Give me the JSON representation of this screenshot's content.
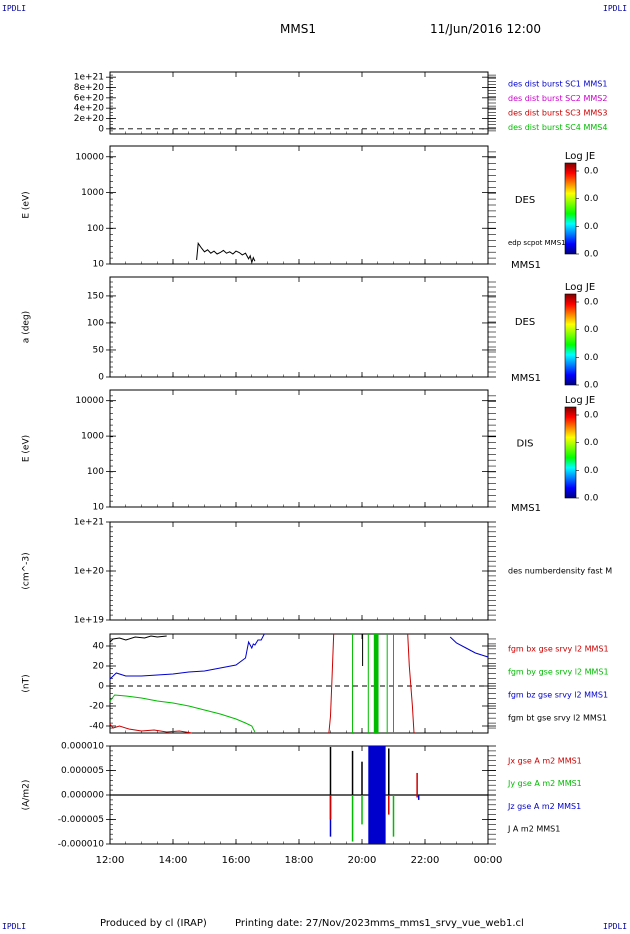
{
  "header": {
    "corner_tl": "IPDLI",
    "corner_tr": "IPDLI",
    "corner_bl": "IPDLI",
    "corner_br": "IPDLI",
    "title": "MMS1",
    "date": "11/Jun/2016 12:00"
  },
  "footer": {
    "produced_by": "Produced by cl (IRAP)",
    "printing_date": "Printing date: 27/Nov/2023",
    "filename": "mms_mms1_srvy_vue_web1.cl"
  },
  "time_axis": {
    "ticks": [
      "12:00",
      "14:00",
      "16:00",
      "18:00",
      "20:00",
      "22:00",
      "00:00"
    ],
    "range_hours": [
      12,
      24
    ]
  },
  "colorbars": [
    {
      "title": "Log JE",
      "labels": [
        "0.0",
        "0.0",
        "0.0",
        "0.0"
      ]
    },
    {
      "title": "Log JE",
      "labels": [
        "0.0",
        "0.0",
        "0.0",
        "0.0"
      ]
    },
    {
      "title": "Log JE",
      "labels": [
        "0.0",
        "0.0",
        "0.0",
        "0.0"
      ]
    }
  ],
  "chart_data": [
    {
      "type": "line",
      "ylabel": "",
      "ylim": [
        -100000000000000000000,
        1100000000000000000000
      ],
      "yticks": [
        "1e+21",
        "8e+20",
        "6e+20",
        "4e+20",
        "2e+20",
        "0"
      ],
      "zero_line": true,
      "legend": [
        {
          "label": "des dist burst SC1 MMS1",
          "color": "#0000cc"
        },
        {
          "label": "des dist burst SC2 MMS2",
          "color": "#cc00cc"
        },
        {
          "label": "des dist burst SC3 MMS3",
          "color": "#cc0000"
        },
        {
          "label": "des dist burst SC4 MMS4",
          "color": "#00bb00"
        }
      ]
    },
    {
      "type": "heatmap",
      "ylabel": "E (eV)",
      "yscale": "log",
      "ylim": [
        10,
        20000
      ],
      "yticks": [
        "10000",
        "1000",
        "100",
        "10"
      ],
      "right_labels": {
        "instrument": "DES",
        "mission": "MMS1",
        "overlay": "edp scpot MMS1"
      },
      "overlay_series": {
        "name": "edp scpot MMS1",
        "color": "#000000",
        "x": [
          14.75,
          14.8,
          14.9,
          15.0,
          15.1,
          15.2,
          15.3,
          15.4,
          15.5,
          15.6,
          15.7,
          15.8,
          15.9,
          16.0,
          16.1,
          16.2,
          16.3,
          16.4,
          16.45,
          16.5,
          16.55,
          16.6
        ],
        "y": [
          13,
          38,
          28,
          22,
          25,
          20,
          23,
          19,
          21,
          24,
          20,
          22,
          19,
          23,
          21,
          18,
          20,
          14,
          17,
          11,
          15,
          12
        ]
      }
    },
    {
      "type": "heatmap",
      "ylabel": "a (deg)",
      "ylim": [
        0,
        185
      ],
      "yticks": [
        "150",
        "100",
        "50",
        "0"
      ],
      "right_labels": {
        "instrument": "DES",
        "mission": "MMS1"
      }
    },
    {
      "type": "heatmap",
      "ylabel": "E (eV)",
      "yscale": "log",
      "ylim": [
        10,
        20000
      ],
      "yticks": [
        "10000",
        "1000",
        "100",
        "10"
      ],
      "right_labels": {
        "instrument": "DIS",
        "mission": "MMS1"
      }
    },
    {
      "type": "line",
      "ylabel": "(cm^-3)",
      "yscale": "log",
      "ylim": [
        1e+19,
        1e+21
      ],
      "yticks": [
        "1e+21",
        "1e+20",
        "1e+19"
      ],
      "legend": [
        {
          "label": "des numberdensity fast M",
          "color": "#000000"
        }
      ]
    },
    {
      "type": "line",
      "ylabel": "(nT)",
      "ylim": [
        -47,
        52
      ],
      "yticks": [
        "40",
        "20",
        "0",
        "-20",
        "-40"
      ],
      "zero_line": true,
      "legend": [
        {
          "label": "fgm bx gse srvy l2 MMS1",
          "color": "#cc0000"
        },
        {
          "label": "fgm by gse srvy l2 MMS1",
          "color": "#00bb00"
        },
        {
          "label": "fgm bz gse srvy l2 MMS1",
          "color": "#0000cc"
        },
        {
          "label": "fgm bt gse srvy l2 MMS1",
          "color": "#000000"
        }
      ],
      "series": [
        {
          "name": "fgm bt gse srvy l2 MMS1",
          "color": "#000000",
          "x": [
            12.0,
            12.1,
            12.3,
            12.5,
            12.8,
            13.1,
            13.3,
            13.5,
            13.8
          ],
          "y": [
            44,
            47,
            48,
            46,
            49,
            48,
            50,
            49,
            50
          ]
        },
        {
          "name": "fgm bx gse srvy l2 MMS1",
          "color": "#cc0000",
          "x": [
            12.0,
            12.1,
            12.3,
            12.6,
            13.0,
            13.4,
            13.8,
            14.2,
            14.6
          ],
          "y": [
            -38,
            -42,
            -40,
            -43,
            -45,
            -44,
            -46,
            -45,
            -47
          ]
        },
        {
          "name": "fgm by gse srvy l2 MMS1",
          "color": "#00bb00",
          "x": [
            12.0,
            12.15,
            12.5,
            13.0,
            13.5,
            14.0,
            14.5,
            15.0,
            15.5,
            16.0,
            16.3,
            16.5,
            16.6
          ],
          "y": [
            -15,
            -9,
            -10,
            -12,
            -15,
            -17,
            -20,
            -24,
            -28,
            -33,
            -37,
            -40,
            -46
          ]
        },
        {
          "name": "fgm bz gse srvy l2 MMS1",
          "color": "#0000cc",
          "x": [
            12.0,
            12.2,
            12.5,
            13.0,
            13.5,
            14.0,
            14.5,
            15.0,
            15.5,
            16.0,
            16.3,
            16.4,
            16.5,
            16.55,
            16.6,
            16.7,
            16.8,
            16.9
          ],
          "y": [
            7,
            13,
            10,
            10,
            11,
            12,
            14,
            15,
            18,
            21,
            28,
            44,
            38,
            42,
            41,
            46,
            46,
            52
          ]
        },
        {
          "name": "fgm bz gse srvy l2 MMS1",
          "color": "#0000cc",
          "x": [
            22.8,
            23.0,
            23.3,
            23.6,
            24.0
          ],
          "y": [
            49,
            43,
            38,
            33,
            29
          ]
        },
        {
          "name": "fgm bx gse srvy l2 MMS1",
          "color": "#cc0000",
          "x": [
            18.95,
            19.0,
            19.05,
            19.1
          ],
          "y": [
            -47,
            -30,
            10,
            52
          ]
        },
        {
          "name": "fgm bx gse srvy l2 MMS1",
          "color": "#cc0000",
          "x": [
            21.45,
            21.5,
            21.6,
            21.65
          ],
          "y": [
            52,
            20,
            -20,
            -47
          ]
        },
        {
          "name": "fgm bt gse srvy l2 MMS1",
          "color": "#000000",
          "x": [
            20.02,
            20.02
          ],
          "y": [
            52,
            20
          ]
        }
      ],
      "bursts": [
        {
          "x": 19.7,
          "color": "#00bb00",
          "y": [
            -47,
            52
          ]
        },
        {
          "x": 20.2,
          "color": "#00bb00",
          "y": [
            -47,
            52
          ]
        },
        {
          "x": 20.45,
          "color": "#00bb00",
          "y": [
            -47,
            52
          ],
          "band_width": 0.15
        },
        {
          "x": 20.8,
          "color": "#00bb00",
          "y": [
            -47,
            52
          ]
        },
        {
          "x": 21.0,
          "color": "#00bb00",
          "y": [
            -47,
            52
          ]
        }
      ]
    },
    {
      "type": "line",
      "ylabel": "(A/m2)",
      "ylim": [
        -1e-05,
        1e-05
      ],
      "yticks": [
        "0.000010",
        "0.000005",
        "0.000000",
        "-0.000005",
        "-0.000010"
      ],
      "legend": [
        {
          "label": "Jx gse A m2 MMS1",
          "color": "#cc0000"
        },
        {
          "label": "Jy gse A m2 MMS1",
          "color": "#00bb00"
        },
        {
          "label": "Jz gse A m2 MMS1",
          "color": "#0000cc"
        },
        {
          "label": "J A m2 MMS1",
          "color": "#000000"
        }
      ],
      "baseline": 0,
      "spikes": [
        {
          "x": 19.0,
          "color": "#000000",
          "y": [
            0,
            9.8e-06
          ]
        },
        {
          "x": 19.0,
          "color": "#0000cc",
          "y": [
            -8.5e-06,
            0
          ]
        },
        {
          "x": 19.0,
          "color": "#cc0000",
          "y": [
            -5e-06,
            0
          ]
        },
        {
          "x": 19.7,
          "color": "#000000",
          "y": [
            0,
            9e-06
          ]
        },
        {
          "x": 19.7,
          "color": "#00bb00",
          "y": [
            -9.5e-06,
            0
          ]
        },
        {
          "x": 20.0,
          "color": "#000000",
          "y": [
            0,
            6.8e-06
          ]
        },
        {
          "x": 20.0,
          "color": "#00bb00",
          "y": [
            -6e-06,
            0
          ]
        },
        {
          "x": 20.85,
          "color": "#000000",
          "y": [
            0,
            9.5e-06
          ]
        },
        {
          "x": 20.85,
          "color": "#cc0000",
          "y": [
            -4e-06,
            0
          ]
        },
        {
          "x": 21.0,
          "color": "#00bb00",
          "y": [
            -8.5e-06,
            0
          ]
        },
        {
          "x": 21.75,
          "color": "#cc0000",
          "y": [
            -5e-07,
            4.5e-06
          ]
        },
        {
          "x": 21.8,
          "color": "#0000cc",
          "y": [
            -1e-06,
            0
          ]
        }
      ],
      "band": {
        "x": [
          20.2,
          20.75
        ],
        "color": "#0000cc",
        "y": [
          -1e-05,
          1e-05
        ]
      }
    }
  ]
}
